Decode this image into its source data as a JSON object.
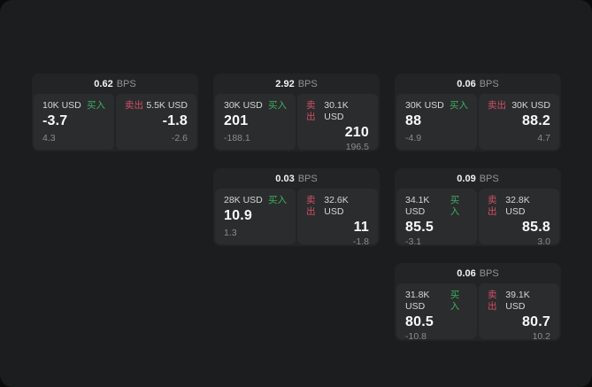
{
  "page": {
    "surface_color": "#1c1d1e",
    "card_color": "#232425",
    "cell_color": "#2b2c2d"
  },
  "colors": {
    "buy_green": "#3fae62",
    "sell_red": "#cf5068"
  },
  "labels": {
    "bps": "BPS",
    "buy": "买入",
    "sell": "卖出"
  },
  "cards": [
    {
      "row": 1,
      "col": 1,
      "bps": "0.62",
      "buy": {
        "amount": "10K USD",
        "price": "-3.7",
        "sub": "4.3"
      },
      "sell": {
        "amount": "5.5K USD",
        "price": "-1.8",
        "sub": "-2.6"
      }
    },
    {
      "row": 1,
      "col": 2,
      "bps": "2.92",
      "buy": {
        "amount": "30K USD",
        "price": "201",
        "sub": "-188.1"
      },
      "sell": {
        "amount": "30.1K USD",
        "price": "210",
        "sub": "196.5"
      }
    },
    {
      "row": 1,
      "col": 3,
      "bps": "0.06",
      "buy": {
        "amount": "30K USD",
        "price": "88",
        "sub": "-4.9"
      },
      "sell": {
        "amount": "30K USD",
        "price": "88.2",
        "sub": "4.7"
      }
    },
    {
      "row": 2,
      "col": 2,
      "bps": "0.03",
      "buy": {
        "amount": "28K USD",
        "price": "10.9",
        "sub": "1.3"
      },
      "sell": {
        "amount": "32.6K USD",
        "price": "11",
        "sub": "-1.8"
      }
    },
    {
      "row": 2,
      "col": 3,
      "bps": "0.09",
      "buy": {
        "amount": "34.1K USD",
        "price": "85.5",
        "sub": "-3.1"
      },
      "sell": {
        "amount": "32.8K USD",
        "price": "85.8",
        "sub": "3.0"
      }
    },
    {
      "row": 3,
      "col": 3,
      "bps": "0.06",
      "buy": {
        "amount": "31.8K USD",
        "price": "80.5",
        "sub": "-10.8"
      },
      "sell": {
        "amount": "39.1K USD",
        "price": "80.7",
        "sub": "10.2"
      }
    }
  ]
}
